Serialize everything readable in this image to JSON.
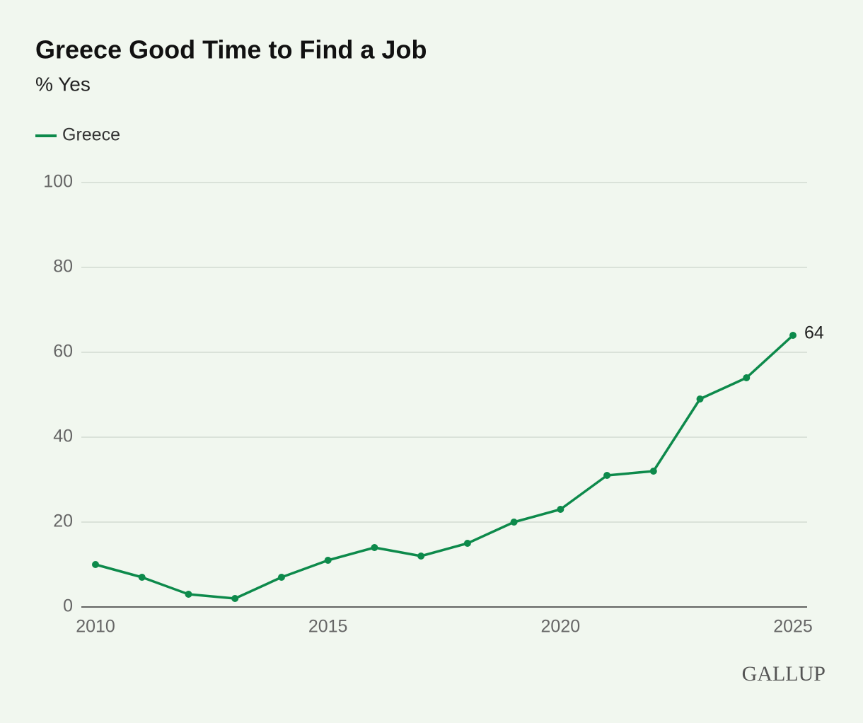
{
  "chart_data": {
    "type": "line",
    "title": "Greece Good Time to Find a Job",
    "subtitle": "% Yes",
    "x": [
      2010,
      2011,
      2012,
      2013,
      2014,
      2015,
      2016,
      2017,
      2018,
      2019,
      2020,
      2021,
      2022,
      2023,
      2024,
      2025
    ],
    "series": [
      {
        "name": "Greece",
        "color": "#0d8a4b",
        "values": [
          10,
          7,
          3,
          2,
          7,
          11,
          14,
          12,
          15,
          20,
          23,
          31,
          32,
          49,
          54,
          64
        ]
      }
    ],
    "xlim": [
      2010,
      2025
    ],
    "xticks": [
      2010,
      2015,
      2020,
      2025
    ],
    "ylim": [
      0,
      100
    ],
    "yticks": [
      0,
      20,
      40,
      60,
      80,
      100
    ],
    "grid": true,
    "legend": "top-left",
    "logo": "GALLUP"
  }
}
